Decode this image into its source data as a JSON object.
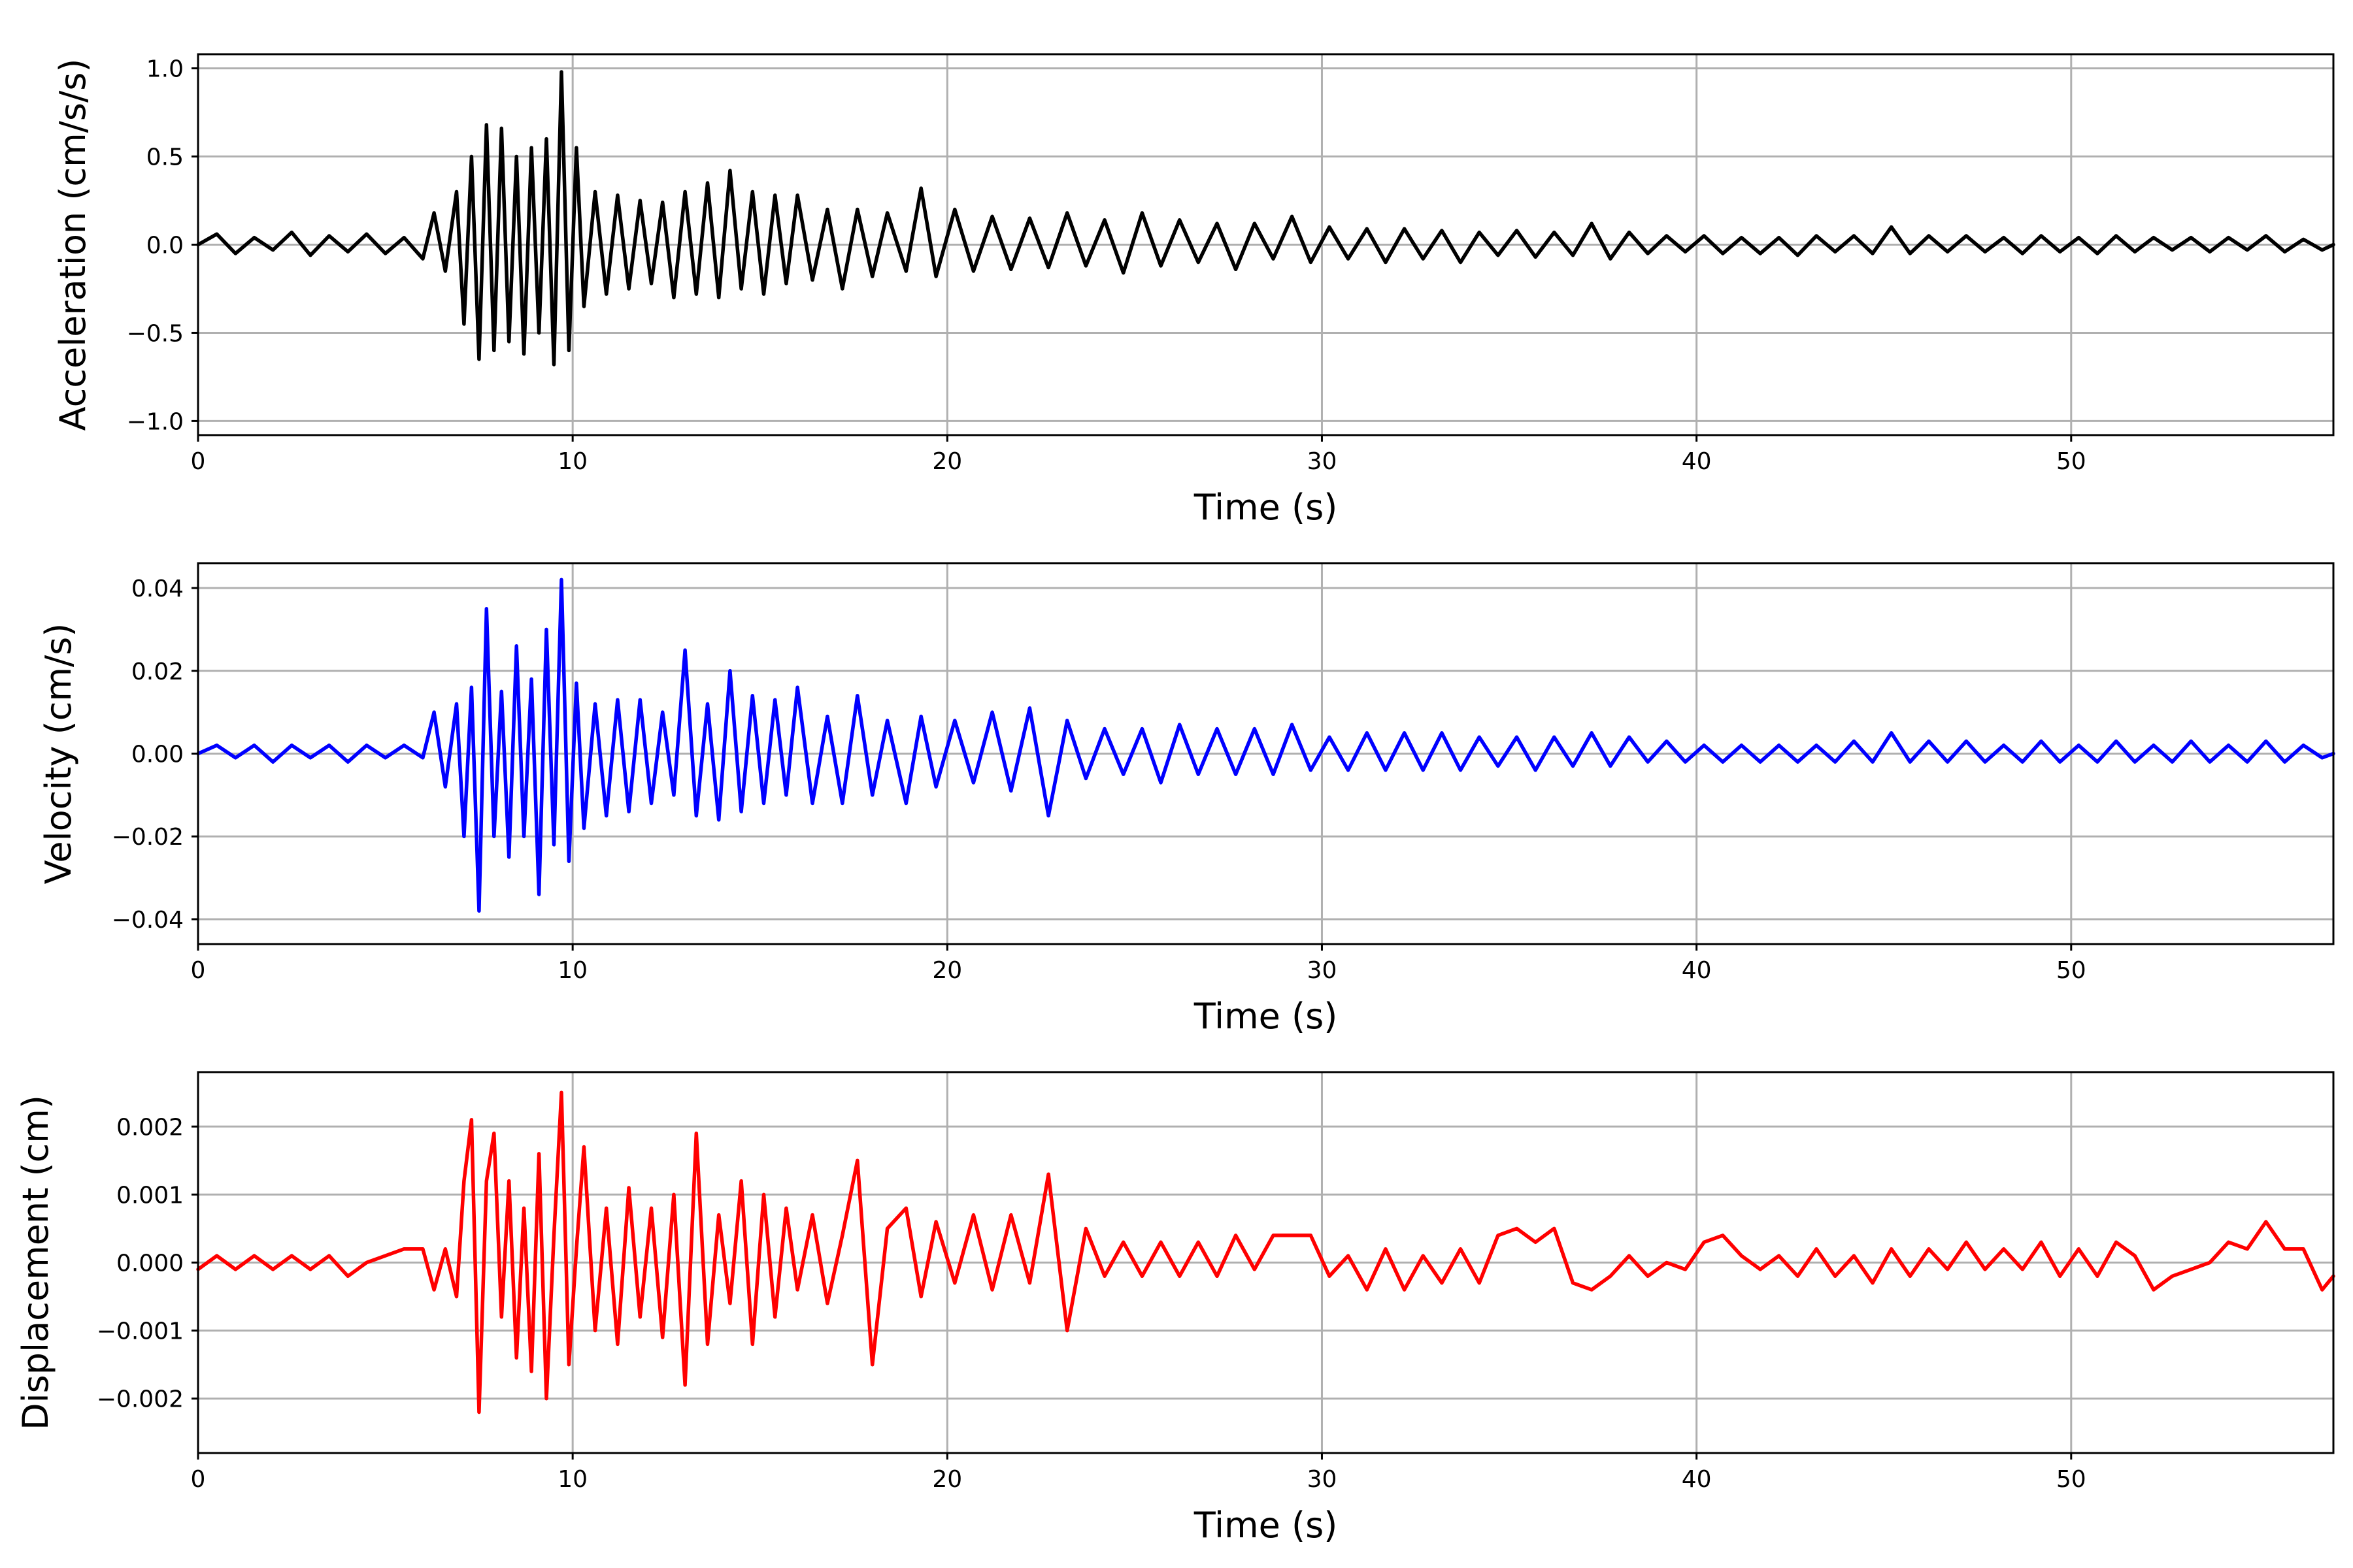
{
  "chart_data": [
    {
      "type": "line",
      "xlabel": "Time (s)",
      "ylabel": "Acceleration (cm/s/s)",
      "xlim": [
        0,
        57
      ],
      "ylim": [
        -1.08,
        1.08
      ],
      "xticks": [
        0,
        10,
        20,
        30,
        40,
        50
      ],
      "xtick_labels": [
        "0",
        "10",
        "20",
        "30",
        "40",
        "50"
      ],
      "yticks": [
        -1.0,
        -0.5,
        0.0,
        0.5,
        1.0
      ],
      "ytick_labels": [
        "−1.0",
        "−0.5",
        "0.0",
        "0.5",
        "1.0"
      ],
      "grid": true,
      "series": [
        {
          "color": "#000000",
          "x": [
            0.0,
            0.5,
            1.0,
            1.5,
            2.0,
            2.5,
            3.0,
            3.5,
            4.0,
            4.5,
            5.0,
            5.5,
            6.0,
            6.3,
            6.6,
            6.9,
            7.1,
            7.3,
            7.5,
            7.7,
            7.9,
            8.1,
            8.3,
            8.5,
            8.7,
            8.9,
            9.1,
            9.3,
            9.5,
            9.7,
            9.9,
            10.1,
            10.3,
            10.6,
            10.9,
            11.2,
            11.5,
            11.8,
            12.1,
            12.4,
            12.7,
            13.0,
            13.3,
            13.6,
            13.9,
            14.2,
            14.5,
            14.8,
            15.1,
            15.4,
            15.7,
            16.0,
            16.4,
            16.8,
            17.2,
            17.6,
            18.0,
            18.4,
            18.9,
            19.3,
            19.7,
            20.2,
            20.7,
            21.2,
            21.7,
            22.2,
            22.7,
            23.2,
            23.7,
            24.2,
            24.7,
            25.2,
            25.7,
            26.2,
            26.7,
            27.2,
            27.7,
            28.2,
            28.7,
            29.2,
            29.7,
            30.2,
            30.7,
            31.2,
            31.7,
            32.2,
            32.7,
            33.2,
            33.7,
            34.2,
            34.7,
            35.2,
            35.7,
            36.2,
            36.7,
            37.2,
            37.7,
            38.2,
            38.7,
            39.2,
            39.7,
            40.2,
            40.7,
            41.2,
            41.7,
            42.2,
            42.7,
            43.2,
            43.7,
            44.2,
            44.7,
            45.2,
            45.7,
            46.2,
            46.7,
            47.2,
            47.7,
            48.2,
            48.7,
            49.2,
            49.7,
            50.2,
            50.7,
            51.2,
            51.7,
            52.2,
            52.7,
            53.2,
            53.7,
            54.2,
            54.7,
            55.2,
            55.7,
            56.2,
            56.7,
            57.0
          ],
          "y": [
            0.0,
            0.06,
            -0.05,
            0.04,
            -0.03,
            0.07,
            -0.06,
            0.05,
            -0.04,
            0.06,
            -0.05,
            0.04,
            -0.08,
            0.18,
            -0.15,
            0.3,
            -0.45,
            0.5,
            -0.65,
            0.68,
            -0.6,
            0.66,
            -0.55,
            0.5,
            -0.62,
            0.55,
            -0.5,
            0.6,
            -0.68,
            0.98,
            -0.6,
            0.55,
            -0.35,
            0.3,
            -0.28,
            0.28,
            -0.25,
            0.25,
            -0.22,
            0.24,
            -0.3,
            0.3,
            -0.28,
            0.35,
            -0.3,
            0.42,
            -0.25,
            0.3,
            -0.28,
            0.28,
            -0.22,
            0.28,
            -0.2,
            0.2,
            -0.25,
            0.2,
            -0.18,
            0.18,
            -0.15,
            0.32,
            -0.18,
            0.2,
            -0.15,
            0.16,
            -0.14,
            0.15,
            -0.13,
            0.18,
            -0.12,
            0.14,
            -0.16,
            0.18,
            -0.12,
            0.14,
            -0.1,
            0.12,
            -0.14,
            0.12,
            -0.08,
            0.16,
            -0.1,
            0.1,
            -0.08,
            0.09,
            -0.1,
            0.09,
            -0.08,
            0.08,
            -0.1,
            0.07,
            -0.06,
            0.08,
            -0.07,
            0.07,
            -0.06,
            0.12,
            -0.08,
            0.07,
            -0.05,
            0.05,
            -0.04,
            0.05,
            -0.05,
            0.04,
            -0.05,
            0.04,
            -0.06,
            0.05,
            -0.04,
            0.05,
            -0.05,
            0.1,
            -0.05,
            0.05,
            -0.04,
            0.05,
            -0.04,
            0.04,
            -0.05,
            0.05,
            -0.04,
            0.04,
            -0.05,
            0.05,
            -0.04,
            0.04,
            -0.03,
            0.04,
            -0.04,
            0.04,
            -0.03,
            0.05,
            -0.04,
            0.03,
            -0.03,
            0.0
          ]
        }
      ]
    },
    {
      "type": "line",
      "xlabel": "Time (s)",
      "ylabel": "Velocity (cm/s)",
      "xlim": [
        0,
        57
      ],
      "ylim": [
        -0.046,
        0.046
      ],
      "xticks": [
        0,
        10,
        20,
        30,
        40,
        50
      ],
      "xtick_labels": [
        "0",
        "10",
        "20",
        "30",
        "40",
        "50"
      ],
      "yticks": [
        -0.04,
        -0.02,
        0.0,
        0.02,
        0.04
      ],
      "ytick_labels": [
        "−0.04",
        "−0.02",
        "0.00",
        "0.02",
        "0.04"
      ],
      "grid": true,
      "series": [
        {
          "color": "#0000ff",
          "x": [
            0.0,
            0.5,
            1.0,
            1.5,
            2.0,
            2.5,
            3.0,
            3.5,
            4.0,
            4.5,
            5.0,
            5.5,
            6.0,
            6.3,
            6.6,
            6.9,
            7.1,
            7.3,
            7.5,
            7.7,
            7.9,
            8.1,
            8.3,
            8.5,
            8.7,
            8.9,
            9.1,
            9.3,
            9.5,
            9.7,
            9.9,
            10.1,
            10.3,
            10.6,
            10.9,
            11.2,
            11.5,
            11.8,
            12.1,
            12.4,
            12.7,
            13.0,
            13.3,
            13.6,
            13.9,
            14.2,
            14.5,
            14.8,
            15.1,
            15.4,
            15.7,
            16.0,
            16.4,
            16.8,
            17.2,
            17.6,
            18.0,
            18.4,
            18.9,
            19.3,
            19.7,
            20.2,
            20.7,
            21.2,
            21.7,
            22.2,
            22.7,
            23.2,
            23.7,
            24.2,
            24.7,
            25.2,
            25.7,
            26.2,
            26.7,
            27.2,
            27.7,
            28.2,
            28.7,
            29.2,
            29.7,
            30.2,
            30.7,
            31.2,
            31.7,
            32.2,
            32.7,
            33.2,
            33.7,
            34.2,
            34.7,
            35.2,
            35.7,
            36.2,
            36.7,
            37.2,
            37.7,
            38.2,
            38.7,
            39.2,
            39.7,
            40.2,
            40.7,
            41.2,
            41.7,
            42.2,
            42.7,
            43.2,
            43.7,
            44.2,
            44.7,
            45.2,
            45.7,
            46.2,
            46.7,
            47.2,
            47.7,
            48.2,
            48.7,
            49.2,
            49.7,
            50.2,
            50.7,
            51.2,
            51.7,
            52.2,
            52.7,
            53.2,
            53.7,
            54.2,
            54.7,
            55.2,
            55.7,
            56.2,
            56.7,
            57.0
          ],
          "y": [
            0.0,
            0.002,
            -0.001,
            0.002,
            -0.002,
            0.002,
            -0.001,
            0.002,
            -0.002,
            0.002,
            -0.001,
            0.002,
            -0.001,
            0.01,
            -0.008,
            0.012,
            -0.02,
            0.016,
            -0.038,
            0.035,
            -0.02,
            0.015,
            -0.025,
            0.026,
            -0.02,
            0.018,
            -0.034,
            0.03,
            -0.022,
            0.042,
            -0.026,
            0.017,
            -0.018,
            0.012,
            -0.015,
            0.013,
            -0.014,
            0.013,
            -0.012,
            0.01,
            -0.01,
            0.025,
            -0.015,
            0.012,
            -0.016,
            0.02,
            -0.014,
            0.014,
            -0.012,
            0.013,
            -0.01,
            0.016,
            -0.012,
            0.009,
            -0.012,
            0.014,
            -0.01,
            0.008,
            -0.012,
            0.009,
            -0.008,
            0.008,
            -0.007,
            0.01,
            -0.009,
            0.011,
            -0.015,
            0.008,
            -0.006,
            0.006,
            -0.005,
            0.006,
            -0.007,
            0.007,
            -0.005,
            0.006,
            -0.005,
            0.006,
            -0.005,
            0.007,
            -0.004,
            0.004,
            -0.004,
            0.005,
            -0.004,
            0.005,
            -0.004,
            0.005,
            -0.004,
            0.004,
            -0.003,
            0.004,
            -0.004,
            0.004,
            -0.003,
            0.005,
            -0.003,
            0.004,
            -0.002,
            0.003,
            -0.002,
            0.002,
            -0.002,
            0.002,
            -0.002,
            0.002,
            -0.002,
            0.002,
            -0.002,
            0.003,
            -0.002,
            0.005,
            -0.002,
            0.003,
            -0.002,
            0.003,
            -0.002,
            0.002,
            -0.002,
            0.003,
            -0.002,
            0.002,
            -0.002,
            0.003,
            -0.002,
            0.002,
            -0.002,
            0.003,
            -0.002,
            0.002,
            -0.002,
            0.003,
            -0.002,
            0.002,
            -0.001,
            0.0
          ]
        }
      ]
    },
    {
      "type": "line",
      "xlabel": "Time (s)",
      "ylabel": "Displacement (cm)",
      "xlim": [
        0,
        57
      ],
      "ylim": [
        -0.0028,
        0.0028
      ],
      "xticks": [
        0,
        10,
        20,
        30,
        40,
        50
      ],
      "xtick_labels": [
        "0",
        "10",
        "20",
        "30",
        "40",
        "50"
      ],
      "yticks": [
        -0.002,
        -0.001,
        0.0,
        0.001,
        0.002
      ],
      "ytick_labels": [
        "−0.002",
        "−0.001",
        "0.000",
        "0.001",
        "0.002"
      ],
      "grid": true,
      "series": [
        {
          "color": "#ff0000",
          "x": [
            0.0,
            0.5,
            1.0,
            1.5,
            2.0,
            2.5,
            3.0,
            3.5,
            4.0,
            4.5,
            5.0,
            5.5,
            6.0,
            6.3,
            6.6,
            6.9,
            7.1,
            7.3,
            7.5,
            7.7,
            7.9,
            8.1,
            8.3,
            8.5,
            8.7,
            8.9,
            9.1,
            9.3,
            9.5,
            9.7,
            9.9,
            10.1,
            10.3,
            10.6,
            10.9,
            11.2,
            11.5,
            11.8,
            12.1,
            12.4,
            12.7,
            13.0,
            13.3,
            13.6,
            13.9,
            14.2,
            14.5,
            14.8,
            15.1,
            15.4,
            15.7,
            16.0,
            16.4,
            16.8,
            17.2,
            17.6,
            18.0,
            18.4,
            18.9,
            19.3,
            19.7,
            20.2,
            20.7,
            21.2,
            21.7,
            22.2,
            22.7,
            23.2,
            23.7,
            24.2,
            24.7,
            25.2,
            25.7,
            26.2,
            26.7,
            27.2,
            27.7,
            28.2,
            28.7,
            29.2,
            29.7,
            30.2,
            30.7,
            31.2,
            31.7,
            32.2,
            32.7,
            33.2,
            33.7,
            34.2,
            34.7,
            35.2,
            35.7,
            36.2,
            36.7,
            37.2,
            37.7,
            38.2,
            38.7,
            39.2,
            39.7,
            40.2,
            40.7,
            41.2,
            41.7,
            42.2,
            42.7,
            43.2,
            43.7,
            44.2,
            44.7,
            45.2,
            45.7,
            46.2,
            46.7,
            47.2,
            47.7,
            48.2,
            48.7,
            49.2,
            49.7,
            50.2,
            50.7,
            51.2,
            51.7,
            52.2,
            52.7,
            53.2,
            53.7,
            54.2,
            54.7,
            55.2,
            55.7,
            56.2,
            56.7,
            57.0
          ],
          "y": [
            -0.0001,
            0.0001,
            -0.0001,
            0.0001,
            -0.0001,
            0.0001,
            -0.0001,
            0.0001,
            -0.0002,
            0.0,
            0.0001,
            0.0002,
            0.0002,
            -0.0004,
            0.0002,
            -0.0005,
            0.0012,
            0.0021,
            -0.0022,
            0.0012,
            0.0019,
            -0.0008,
            0.0012,
            -0.0014,
            0.0008,
            -0.0016,
            0.0016,
            -0.002,
            0.0004,
            0.0025,
            -0.0015,
            0.0002,
            0.0017,
            -0.001,
            0.0008,
            -0.0012,
            0.0011,
            -0.0008,
            0.0008,
            -0.0011,
            0.001,
            -0.0018,
            0.0019,
            -0.0012,
            0.0007,
            -0.0006,
            0.0012,
            -0.0012,
            0.001,
            -0.0008,
            0.0008,
            -0.0004,
            0.0007,
            -0.0006,
            0.0004,
            0.0015,
            -0.0015,
            0.0005,
            0.0008,
            -0.0005,
            0.0006,
            -0.0003,
            0.0007,
            -0.0004,
            0.0007,
            -0.0003,
            0.0013,
            -0.001,
            0.0005,
            -0.0002,
            0.0003,
            -0.0002,
            0.0003,
            -0.0002,
            0.0003,
            -0.0002,
            0.0004,
            -0.0001,
            0.0004,
            0.0004,
            0.0004,
            -0.0002,
            0.0001,
            -0.0004,
            0.0002,
            -0.0004,
            0.0001,
            -0.0003,
            0.0002,
            -0.0003,
            0.0004,
            0.0005,
            0.0003,
            0.0005,
            -0.0003,
            -0.0004,
            -0.0002,
            0.0001,
            -0.0002,
            0.0,
            -0.0001,
            0.0003,
            0.0004,
            0.0001,
            -0.0001,
            0.0001,
            -0.0002,
            0.0002,
            -0.0002,
            0.0001,
            -0.0003,
            0.0002,
            -0.0002,
            0.0002,
            -0.0001,
            0.0003,
            -0.0001,
            0.0002,
            -0.0001,
            0.0003,
            -0.0002,
            0.0002,
            -0.0002,
            0.0003,
            0.0001,
            -0.0004,
            -0.0002,
            -0.0001,
            0.0,
            0.0003,
            0.0002,
            0.0006,
            0.0002,
            0.0002,
            -0.0004,
            -0.0002
          ]
        }
      ]
    }
  ]
}
